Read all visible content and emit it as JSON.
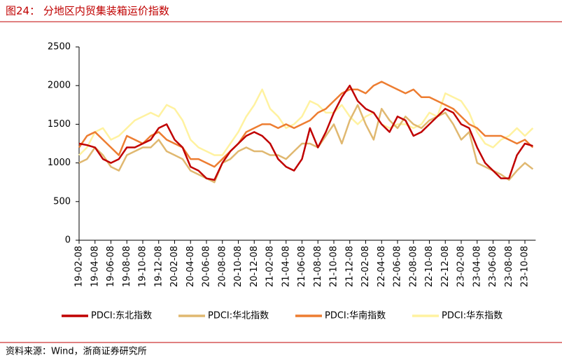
{
  "title": "图24：  分地区内贸集装箱运价指数",
  "source": "资料来源：Wind，浙商证券研究所",
  "chart_data": {
    "type": "line",
    "categories": [
      "19-02-08",
      null,
      "19-04-08",
      null,
      "19-06-08",
      null,
      "19-08-08",
      null,
      "19-10-08",
      null,
      "19-12-08",
      null,
      "20-02-08",
      null,
      "20-04-08",
      null,
      "20-06-08",
      null,
      "20-08-08",
      null,
      "20-10-08",
      null,
      "20-12-08",
      null,
      "21-02-08",
      null,
      "21-04-08",
      null,
      "21-06-08",
      null,
      "21-08-08",
      null,
      "21-10-08",
      null,
      "21-12-08",
      null,
      "22-02-08",
      null,
      "22-04-08",
      null,
      "22-06-08",
      null,
      "22-08-08",
      null,
      "22-10-08",
      null,
      "22-12-08",
      null,
      "23-02-08",
      null,
      "23-04-08",
      null,
      "23-06-08",
      null,
      "23-08-08",
      null,
      "23-10-08",
      null
    ],
    "series": [
      {
        "name": "PDCI:东北指数",
        "color": "#c00000",
        "values": [
          1250,
          1230,
          1200,
          1050,
          1000,
          1050,
          1200,
          1200,
          1250,
          1300,
          1450,
          1500,
          1300,
          1200,
          950,
          900,
          800,
          780,
          1000,
          1150,
          1250,
          1350,
          1400,
          1350,
          1250,
          1050,
          950,
          900,
          1050,
          1450,
          1200,
          1400,
          1650,
          1850,
          2000,
          1800,
          1700,
          1650,
          1500,
          1400,
          1600,
          1550,
          1350,
          1400,
          1500,
          1600,
          1700,
          1650,
          1500,
          1450,
          1200,
          1000,
          900,
          800,
          800,
          1100,
          1250,
          1220
        ]
      },
      {
        "name": "PDCI:华北指数",
        "color": "#e0b870",
        "values": [
          1000,
          1050,
          1200,
          1100,
          950,
          900,
          1100,
          1150,
          1200,
          1200,
          1300,
          1150,
          1100,
          1050,
          900,
          850,
          800,
          750,
          1000,
          1050,
          1150,
          1200,
          1150,
          1150,
          1100,
          1100,
          1050,
          1150,
          1250,
          1250,
          1200,
          1350,
          1500,
          1250,
          1550,
          1750,
          1500,
          1300,
          1700,
          1550,
          1450,
          1600,
          1500,
          1450,
          1550,
          1600,
          1650,
          1500,
          1300,
          1400,
          1000,
          950,
          900,
          850,
          780,
          900,
          1000,
          920
        ]
      },
      {
        "name": "PDCI:华南指数",
        "color": "#ed7d31",
        "values": [
          1200,
          1350,
          1400,
          1300,
          1200,
          1100,
          1350,
          1300,
          1250,
          1350,
          1400,
          1300,
          1250,
          1200,
          1050,
          1050,
          1000,
          950,
          1050,
          1150,
          1250,
          1400,
          1450,
          1500,
          1500,
          1450,
          1500,
          1450,
          1500,
          1550,
          1650,
          1700,
          1800,
          1900,
          1950,
          1950,
          1900,
          2000,
          2050,
          2000,
          1950,
          1900,
          1950,
          1850,
          1850,
          1800,
          1750,
          1700,
          1600,
          1500,
          1450,
          1350,
          1350,
          1350,
          1300,
          1250,
          1300,
          1200
        ]
      },
      {
        "name": "PDCI:华东指数",
        "color": "#fff2a0",
        "values": [
          1100,
          1200,
          1400,
          1450,
          1300,
          1350,
          1450,
          1550,
          1600,
          1650,
          1600,
          1750,
          1700,
          1550,
          1300,
          1200,
          1150,
          1100,
          1100,
          1250,
          1400,
          1600,
          1750,
          1950,
          1700,
          1600,
          1450,
          1500,
          1600,
          1800,
          1750,
          1650,
          1650,
          1750,
          1600,
          1500,
          1600,
          1650,
          1500,
          1450,
          1500,
          1500,
          1450,
          1500,
          1650,
          1600,
          1900,
          1850,
          1800,
          1650,
          1400,
          1250,
          1200,
          1300,
          1350,
          1450,
          1350,
          1450
        ]
      }
    ],
    "ylim": [
      0,
      2500
    ],
    "yticks": [
      0,
      500,
      1000,
      1500,
      2000,
      2500
    ],
    "grid": false
  }
}
